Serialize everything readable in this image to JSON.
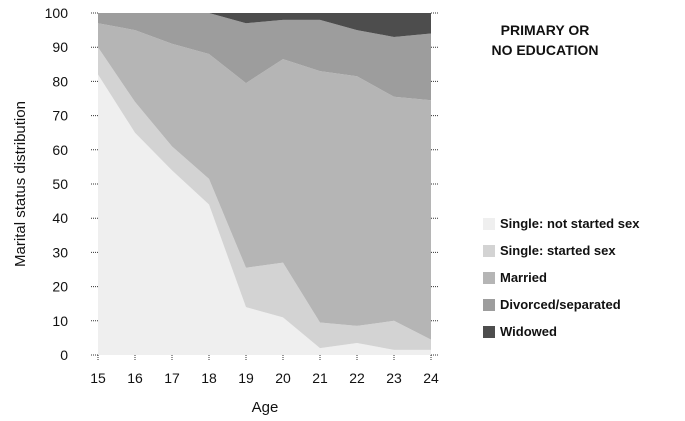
{
  "chart_data": {
    "type": "area",
    "title_lines": [
      "PRIMARY OR",
      "NO EDUCATION"
    ],
    "xlabel": "Age",
    "ylabel": "Marital status distribution",
    "x": [
      15,
      16,
      17,
      18,
      19,
      20,
      21,
      22,
      23,
      24
    ],
    "ylim": [
      0,
      100
    ],
    "yticks": [
      0,
      10,
      20,
      30,
      40,
      50,
      60,
      70,
      80,
      90,
      100
    ],
    "stacked": true,
    "legend_position": "right",
    "series": [
      {
        "name": "Single: not started sex",
        "color": "#efefef",
        "values": [
          82,
          65,
          54,
          44,
          14,
          11,
          2,
          3.5,
          1.5,
          1.5
        ]
      },
      {
        "name": "Single: started sex",
        "color": "#d3d3d3",
        "values": [
          8,
          9,
          7,
          7.5,
          11.5,
          16,
          7.5,
          5,
          8.5,
          3
        ]
      },
      {
        "name": "Married",
        "color": "#b5b5b5",
        "values": [
          7,
          21,
          30,
          36.5,
          54,
          59.5,
          73.5,
          73,
          65.5,
          70
        ]
      },
      {
        "name": "Divorced/separated",
        "color": "#9d9d9d",
        "values": [
          3,
          5,
          9,
          12,
          17.5,
          11.5,
          15,
          13.5,
          17.5,
          19.5
        ]
      },
      {
        "name": "Widowed",
        "color": "#4d4d4d",
        "values": [
          0,
          0,
          0,
          0,
          3,
          2,
          2,
          5,
          7,
          6
        ]
      }
    ]
  }
}
